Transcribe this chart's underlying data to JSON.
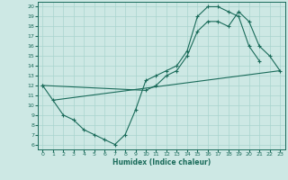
{
  "background_color": "#cde8e4",
  "grid_color": "#a8d4ce",
  "line_color": "#1a6b5a",
  "marker": "+",
  "xlabel": "Humidex (Indice chaleur)",
  "xlim": [
    -0.5,
    23.5
  ],
  "ylim": [
    5.5,
    20.5
  ],
  "xticks": [
    0,
    1,
    2,
    3,
    4,
    5,
    6,
    7,
    8,
    9,
    10,
    11,
    12,
    13,
    14,
    15,
    16,
    17,
    18,
    19,
    20,
    21,
    22,
    23
  ],
  "yticks": [
    6,
    7,
    8,
    9,
    10,
    11,
    12,
    13,
    14,
    15,
    16,
    17,
    18,
    19,
    20
  ],
  "line1_x": [
    0,
    1,
    2,
    3,
    4,
    5,
    6,
    7,
    8,
    9,
    10,
    11,
    12,
    13,
    14,
    15,
    16,
    17,
    18,
    19,
    20,
    21
  ],
  "line1_y": [
    12,
    10.5,
    9.0,
    8.5,
    7.5,
    7.0,
    6.5,
    6.0,
    7.0,
    9.5,
    12.5,
    13.0,
    13.5,
    14.0,
    15.5,
    19.0,
    20.0,
    20.0,
    19.5,
    19.0,
    16.0,
    14.5
  ],
  "line2_x": [
    0,
    10,
    11,
    12,
    13,
    14,
    15,
    16,
    17,
    18,
    19,
    20,
    21,
    22,
    23
  ],
  "line2_y": [
    12,
    11.5,
    12.0,
    13.0,
    13.5,
    15.0,
    17.5,
    18.5,
    18.5,
    18.0,
    19.5,
    18.5,
    16.0,
    15.0,
    13.5
  ],
  "line3_x": [
    1,
    23
  ],
  "line3_y": [
    10.5,
    13.5
  ]
}
